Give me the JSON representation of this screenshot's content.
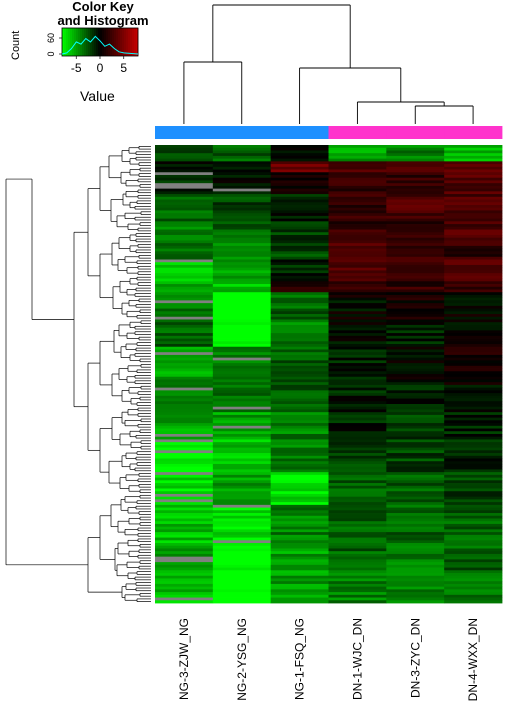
{
  "chart_data": {
    "type": "heatmap",
    "title": "",
    "color_key": {
      "title_line1": "Color Key",
      "title_line2": "and Histogram",
      "ylabel": "Count",
      "yticks": [
        "0",
        "60"
      ],
      "xticks": [
        "-5",
        "0",
        "5"
      ],
      "xlabel": "Value",
      "value_range": [
        -8,
        8
      ],
      "low_color": "#00ff00",
      "mid_color": "#000000",
      "high_color": "#ff0000",
      "histogram_color": "#00ffff"
    },
    "columns": [
      "NG-3-ZJW_NG",
      "NG-2-YSG_NG",
      "NG-1-FSQ_NG",
      "DN-1-WJC_DN",
      "DN-3-ZYC_DN",
      "DN-4-WXX_DN"
    ],
    "column_groups": [
      "NG",
      "NG",
      "NG",
      "DN",
      "DN",
      "DN"
    ],
    "group_colors": {
      "NG": "#1e90ff",
      "DN": "#ff33cc"
    },
    "missing_color": "#808080",
    "row_blocks": [
      {
        "rows": 6,
        "values": [
          -2,
          -3,
          0,
          -5,
          -4,
          -6
        ]
      },
      {
        "rows": 4,
        "values": [
          0,
          -1,
          4,
          3,
          3,
          4
        ]
      },
      {
        "rows": 8,
        "values": [
          -1,
          0,
          1,
          2,
          2,
          3
        ]
      },
      {
        "rows": 10,
        "values": [
          -3,
          -2,
          -1,
          2,
          3,
          3
        ]
      },
      {
        "rows": 8,
        "values": [
          -4,
          -3,
          -2,
          2,
          2,
          3
        ]
      },
      {
        "rows": 6,
        "values": [
          -3,
          -4,
          -2,
          3,
          2,
          2
        ]
      },
      {
        "rows": 8,
        "values": [
          -6,
          -5,
          -1,
          3,
          3,
          3
        ]
      },
      {
        "rows": 4,
        "values": [
          -5,
          -6,
          1,
          2,
          2,
          2
        ]
      },
      {
        "rows": 10,
        "values": [
          -4,
          -9,
          -3,
          0,
          1,
          0
        ]
      },
      {
        "rows": 10,
        "values": [
          -3,
          -8,
          -4,
          0,
          -1,
          0
        ]
      },
      {
        "rows": 12,
        "values": [
          -5,
          -4,
          -3,
          -1,
          0,
          1
        ]
      },
      {
        "rows": 12,
        "values": [
          -4,
          -3,
          -3,
          -1,
          -1,
          0
        ]
      },
      {
        "rows": 10,
        "values": [
          -5,
          -5,
          -4,
          -1,
          -2,
          -1
        ]
      },
      {
        "rows": 12,
        "values": [
          -8,
          -6,
          -4,
          -2,
          -2,
          -1
        ]
      },
      {
        "rows": 12,
        "values": [
          -7,
          -5,
          -7,
          -3,
          -3,
          -2
        ]
      },
      {
        "rows": 14,
        "values": [
          -6,
          -7,
          -4,
          -3,
          -3,
          -3
        ]
      },
      {
        "rows": 10,
        "values": [
          -5,
          -8,
          -5,
          -3,
          -4,
          -3
        ]
      },
      {
        "rows": 12,
        "values": [
          -6,
          -9,
          -5,
          -4,
          -4,
          -4
        ]
      }
    ]
  }
}
